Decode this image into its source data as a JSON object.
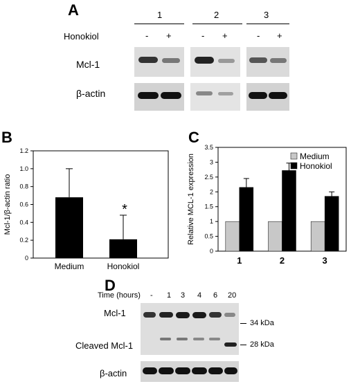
{
  "panel_a": {
    "letter": "A",
    "groups": [
      "1",
      "2",
      "3"
    ],
    "treatment_label": "Honokiol",
    "signs": [
      "-",
      "+",
      "-",
      "+",
      "-",
      "+"
    ],
    "row1_label": "Mcl-1",
    "row2_label": "β-actin"
  },
  "panel_b": {
    "letter": "B",
    "chart_data": {
      "type": "bar",
      "categories": [
        "Medium",
        "Honokiol"
      ],
      "values": [
        0.68,
        0.21
      ],
      "errors": [
        0.32,
        0.27
      ],
      "ylabel": "Mcl-1/β-actin ratio",
      "ylim": [
        0,
        1.2
      ],
      "yticks": [
        "0",
        "0.2",
        "0.4",
        "0.6",
        "0.8",
        "1.0",
        "1.2"
      ],
      "annotation": "*",
      "colors": [
        "#000000",
        "#000000"
      ]
    }
  },
  "panel_c": {
    "letter": "C",
    "chart_data": {
      "type": "bar",
      "categories": [
        "1",
        "2",
        "3"
      ],
      "series": [
        {
          "name": "Medium",
          "values": [
            1.0,
            1.0,
            1.0
          ],
          "color": "#c8c8c8"
        },
        {
          "name": "Honokiol",
          "values": [
            2.15,
            2.72,
            1.85
          ],
          "errors": [
            0.3,
            0.25,
            0.15
          ],
          "color": "#000000"
        }
      ],
      "ylabel": "Relative MCL-1 expression",
      "ylim": [
        0,
        3.5
      ],
      "yticks": [
        "0",
        "0.5",
        "1",
        "1.5",
        "2",
        "2.5",
        "3",
        "3.5"
      ],
      "legend": "top-right"
    }
  },
  "panel_d": {
    "letter": "D",
    "time_label": "Time (hours)",
    "times": [
      "-",
      "1",
      "3",
      "4",
      "6",
      "20"
    ],
    "row1_label": "Mcl-1",
    "row2_label": "Cleaved Mcl-1",
    "row3_label": "β-actin",
    "marker1": "34 kDa",
    "marker2": "28 kDa"
  }
}
